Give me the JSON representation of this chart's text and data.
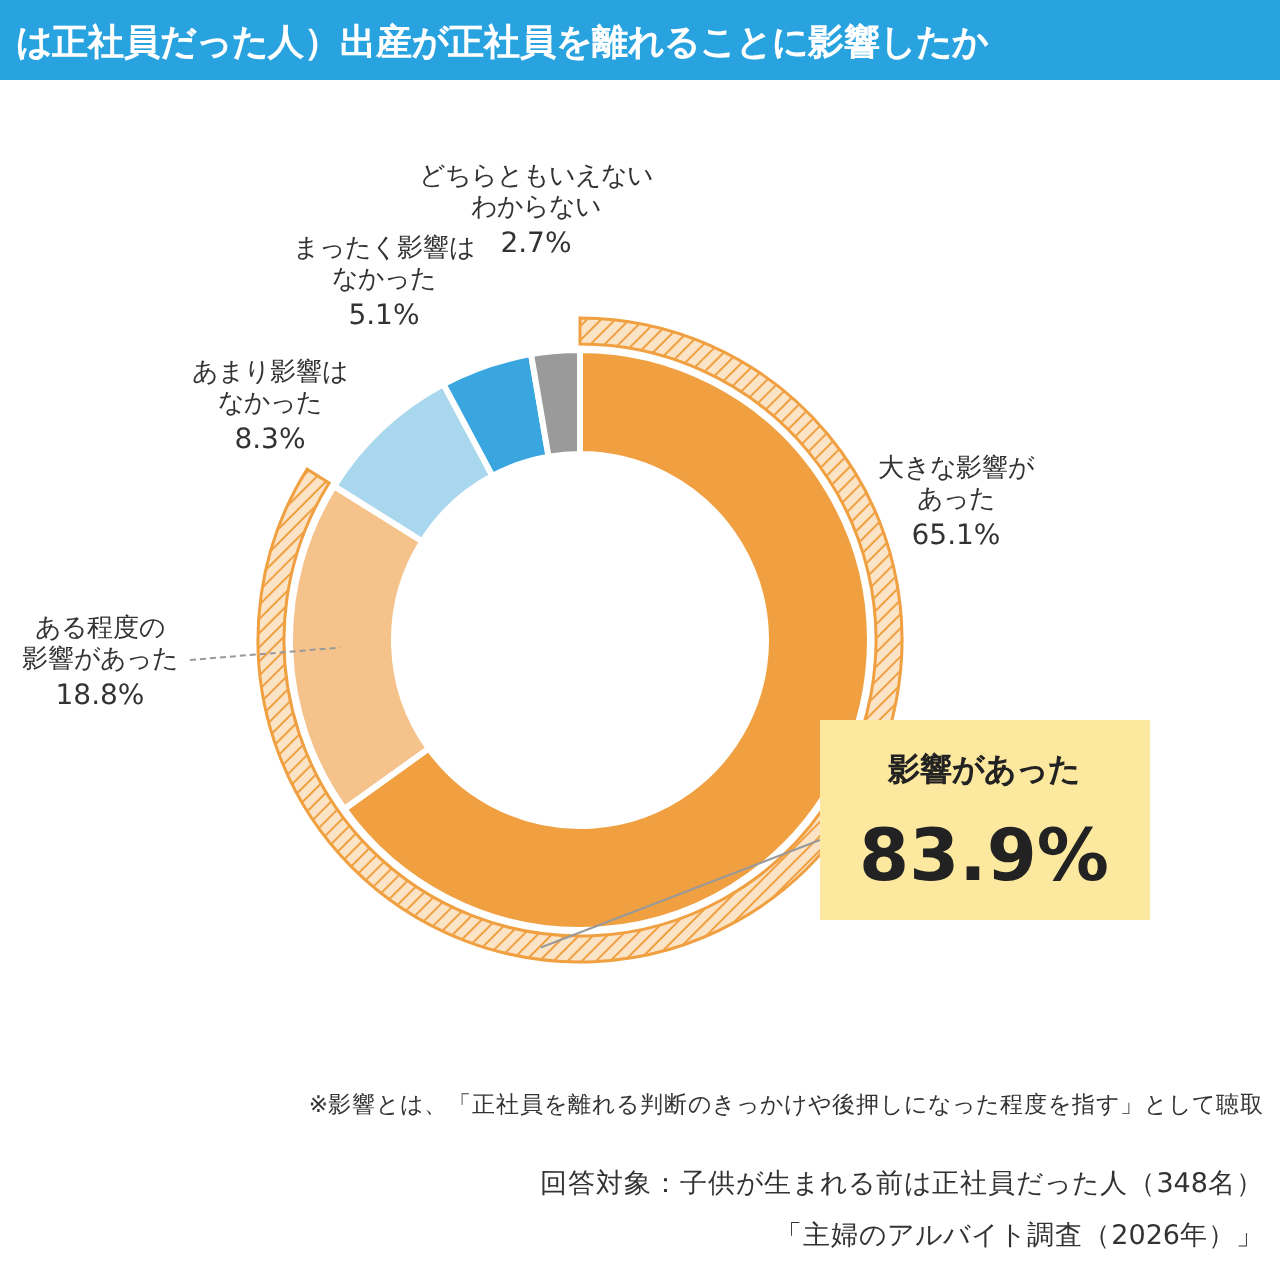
{
  "chart_data": {
    "type": "donut",
    "title": "は正社員だった人）出産が正社員を離れることに影響したか",
    "categories": [
      "大きな影響があった",
      "ある程度の影響があった",
      "あまり影響はなかった",
      "まったく影響はなかった",
      "どちらともいえないわからない"
    ],
    "values": [
      65.1,
      18.8,
      8.3,
      5.1,
      2.7
    ],
    "value_labels": [
      "65.1%",
      "18.8%",
      "8.3%",
      "5.1%",
      "2.7%"
    ],
    "colors": [
      "#f0a040",
      "#f5c28c",
      "#a9d8ee",
      "#3aa6e0",
      "#9a9a9a"
    ],
    "annotations": [
      "影響があった",
      "83.9%",
      "※影響とは、「正社員を離れる判断のきっかけや後押しになった程度を指す」として聴取",
      "回答対象：子供が生まれる前は正社員だった人（348名）",
      "「主婦のアルバイト調査（2026年）」"
    ]
  }
}
